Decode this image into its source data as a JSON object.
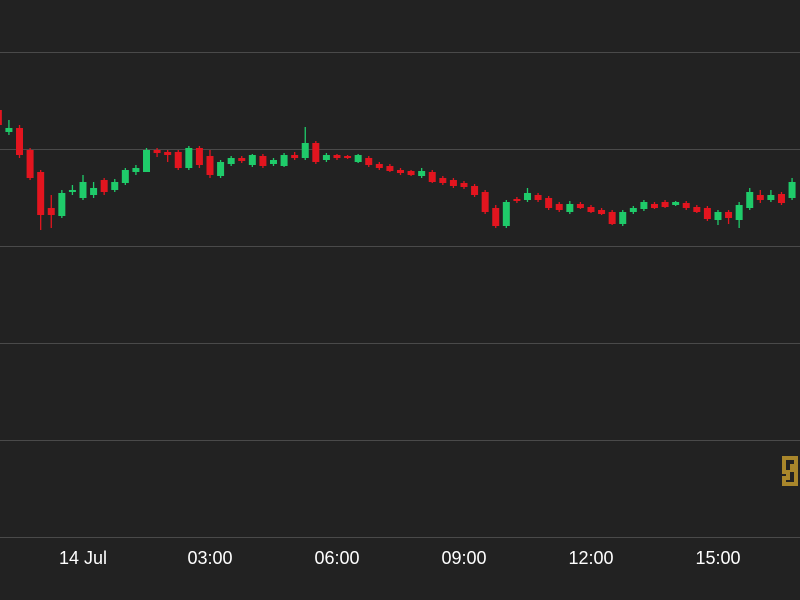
{
  "chart_data": {
    "type": "candlestick",
    "up_color": "#1fcb6a",
    "down_color": "#e3151f",
    "grid": true,
    "open": [
      427,
      405,
      409,
      387,
      365,
      329,
      321,
      345,
      339,
      342,
      357,
      347,
      354,
      365,
      365,
      387,
      385,
      385,
      369,
      389,
      381,
      361,
      373,
      379,
      372,
      381,
      373,
      371,
      382,
      379,
      394,
      377,
      382,
      381,
      375,
      379,
      373,
      371,
      367,
      366,
      361,
      365,
      359,
      357,
      354,
      351,
      345,
      329,
      311,
      338,
      337,
      342,
      339,
      333,
      325,
      333,
      330,
      327,
      325,
      313,
      325,
      328,
      333,
      335,
      332,
      334,
      330,
      329,
      317,
      325,
      317,
      329,
      342,
      337,
      343,
      339
    ],
    "high": [
      432,
      417,
      412,
      389,
      367,
      342,
      347,
      352,
      362,
      355,
      359,
      358,
      369,
      372,
      389,
      389,
      387,
      387,
      391,
      391,
      387,
      377,
      381,
      381,
      383,
      383,
      379,
      384,
      385,
      410,
      396,
      384,
      383,
      382,
      383,
      381,
      375,
      373,
      369,
      367,
      369,
      367,
      361,
      359,
      356,
      353,
      347,
      332,
      337,
      340,
      349,
      344,
      341,
      335,
      336,
      335,
      332,
      329,
      327,
      327,
      331,
      337,
      335,
      337,
      336,
      336,
      332,
      331,
      327,
      327,
      335,
      349,
      347,
      347,
      345,
      359
    ],
    "low": [
      409,
      402,
      379,
      357,
      307,
      309,
      319,
      342,
      337,
      339,
      342,
      345,
      352,
      362,
      365,
      380,
      375,
      367,
      367,
      369,
      359,
      359,
      371,
      374,
      370,
      369,
      371,
      370,
      377,
      377,
      373,
      375,
      377,
      378,
      374,
      370,
      367,
      365,
      362,
      361,
      359,
      354,
      352,
      349,
      348,
      340,
      323,
      309,
      309,
      334,
      335,
      335,
      327,
      325,
      323,
      328,
      324,
      322,
      312,
      311,
      323,
      326,
      328,
      329,
      331,
      327,
      324,
      316,
      312,
      313,
      309,
      327,
      334,
      335,
      332,
      337
    ],
    "close": [
      412,
      409,
      382,
      359,
      322,
      322,
      344,
      347,
      355,
      349,
      345,
      355,
      367,
      369,
      387,
      384,
      382,
      369,
      389,
      372,
      362,
      375,
      379,
      376,
      382,
      371,
      377,
      382,
      379,
      394,
      375,
      382,
      379,
      379,
      382,
      372,
      369,
      366,
      364,
      362,
      366,
      355,
      354,
      351,
      350,
      342,
      325,
      311,
      335,
      336,
      344,
      337,
      329,
      327,
      333,
      329,
      325,
      323,
      313,
      325,
      329,
      335,
      329,
      330,
      335,
      329,
      325,
      318,
      325,
      319,
      332,
      345,
      337,
      342,
      334,
      355
    ],
    "xlim": [
      0.157,
      75.75
    ],
    "xticks": [
      {
        "value": 8,
        "label": "14 Jul"
      },
      {
        "value": 20,
        "label": "03:00"
      },
      {
        "value": 32,
        "label": "06:00"
      },
      {
        "value": 44,
        "label": "09:00"
      },
      {
        "value": 56,
        "label": "12:00"
      },
      {
        "value": 68,
        "label": "15:00"
      }
    ],
    "ylim": [
      0,
      537
    ],
    "yticks": [
      0,
      97,
      194,
      291,
      388,
      485
    ]
  }
}
